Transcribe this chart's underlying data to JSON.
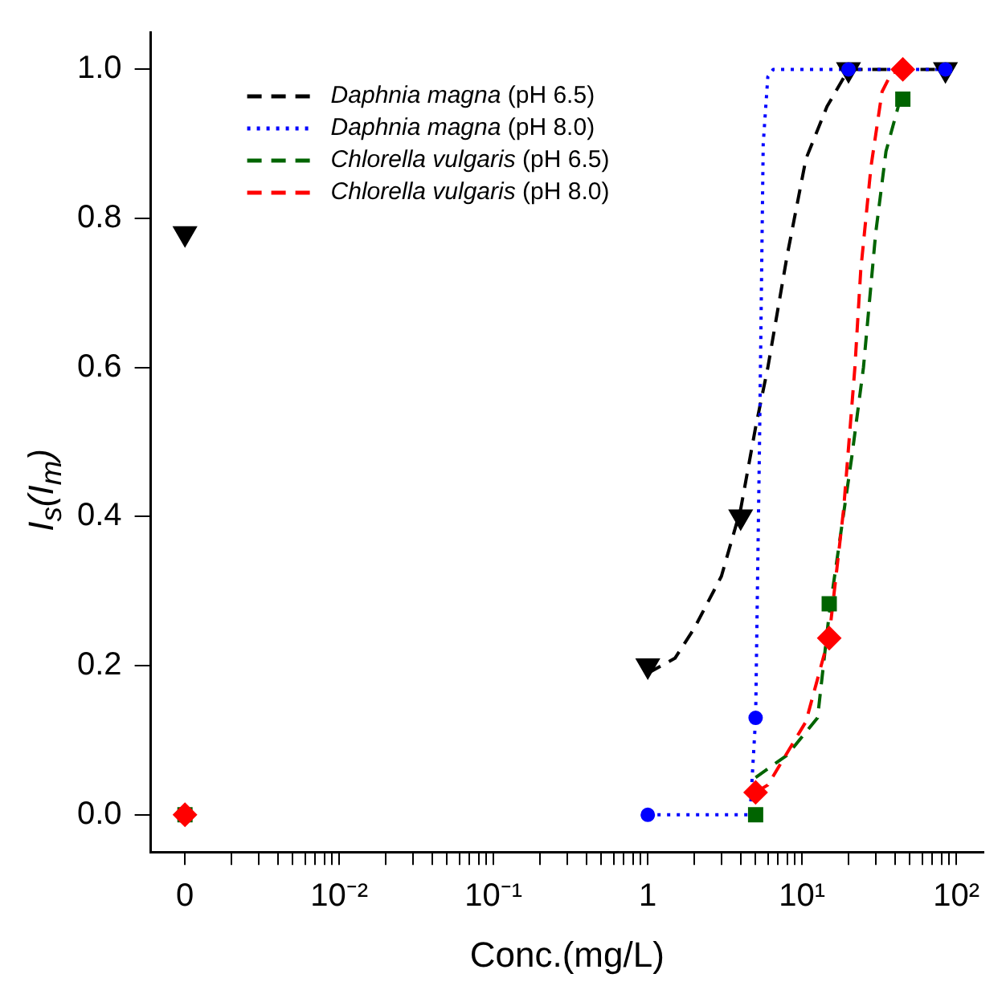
{
  "chart_data": {
    "type": "scatter",
    "xlabel": "Conc.(mg/L)",
    "ylabel": "I$_{s}$(I$_{m}$)",
    "log": "x",
    "legend": "top left",
    "xlim": [
      0.0006,
      150
    ],
    "ylim": [
      -0.05,
      1.05
    ],
    "xticks": [
      {
        "value": 0.001,
        "label": "0"
      },
      {
        "value": 0.002,
        "label": null
      },
      {
        "value": 0.003,
        "label": null
      },
      {
        "value": 0.004,
        "label": null
      },
      {
        "value": 0.005,
        "label": null
      },
      {
        "value": 0.006,
        "label": null
      },
      {
        "value": 0.007,
        "label": null
      },
      {
        "value": 0.008,
        "label": null
      },
      {
        "value": 0.009,
        "label": null
      },
      {
        "value": 0.01,
        "label": "10⁻²"
      },
      {
        "value": 0.02,
        "label": null
      },
      {
        "value": 0.03,
        "label": null
      },
      {
        "value": 0.04,
        "label": null
      },
      {
        "value": 0.05,
        "label": null
      },
      {
        "value": 0.06,
        "label": null
      },
      {
        "value": 0.07,
        "label": null
      },
      {
        "value": 0.08,
        "label": null
      },
      {
        "value": 0.09,
        "label": null
      },
      {
        "value": 0.1,
        "label": "10⁻¹"
      },
      {
        "value": 0.2,
        "label": null
      },
      {
        "value": 0.3,
        "label": null
      },
      {
        "value": 0.4,
        "label": null
      },
      {
        "value": 0.5,
        "label": null
      },
      {
        "value": 0.6,
        "label": null
      },
      {
        "value": 0.7,
        "label": null
      },
      {
        "value": 0.8,
        "label": null
      },
      {
        "value": 0.9,
        "label": null
      },
      1,
      {
        "value": 2,
        "label": null
      },
      {
        "value": 3,
        "label": null
      },
      {
        "value": 4,
        "label": null
      },
      {
        "value": 5,
        "label": null
      },
      {
        "value": 6,
        "label": null
      },
      {
        "value": 7,
        "label": null
      },
      {
        "value": 8,
        "label": null
      },
      {
        "value": 9,
        "label": null
      },
      {
        "value": 10,
        "label": "10¹"
      },
      {
        "value": 20,
        "label": null
      },
      {
        "value": 30,
        "label": null
      },
      {
        "value": 40,
        "label": null
      },
      {
        "value": 50,
        "label": null
      },
      {
        "value": 60,
        "label": null
      },
      {
        "value": 70,
        "label": null
      },
      {
        "value": 80,
        "label": null
      },
      {
        "value": 90,
        "label": null
      },
      {
        "value": 100,
        "label": "10²"
      }
    ],
    "yticks": [
      {
        "value": 0,
        "label": "0.0"
      },
      0.2,
      0.4,
      0.6,
      0.8,
      {
        "value": 1,
        "label": "1.0"
      }
    ],
    "series": [
      {
        "name": "Daphnia magna (pH 6.5)",
        "type": "line",
        "color": "#000000",
        "line_style": "dashed",
        "marker": "none",
        "x": [
          1,
          1.5,
          2,
          3,
          4,
          5,
          6,
          8,
          10.6,
          14.5,
          20,
          85
        ],
        "values": [
          0.19,
          0.21,
          0.25,
          0.32,
          0.41,
          0.52,
          0.6,
          0.75,
          0.88,
          0.95,
          1.0,
          1.0
        ]
      },
      {
        "name": "Daphnia magna (pH 8.0)",
        "type": "line",
        "color": "#0000ff",
        "line_style": "dotted",
        "marker": "none",
        "x": [
          1,
          4.6,
          5,
          5.3,
          5.6,
          6,
          6.5,
          85
        ],
        "values": [
          0,
          0,
          0.13,
          0.5,
          0.9,
          0.99,
          1.0,
          1.0
        ]
      },
      {
        "name": "Chlorella vulgaris (pH 6.5)",
        "type": "line",
        "color": "#006400",
        "line_style": "dashed",
        "marker": "none",
        "x": [
          5,
          8,
          12.6,
          15,
          21,
          25,
          30,
          35,
          42,
          46
        ],
        "values": [
          0.05,
          0.08,
          0.13,
          0.27,
          0.48,
          0.6,
          0.78,
          0.89,
          0.95,
          0.97
        ]
      },
      {
        "name": "Chlorella vulgaris (pH 8.0)",
        "type": "line",
        "color": "#ff0000",
        "line_style": "dashed",
        "marker": "none",
        "x": [
          5,
          6,
          10.6,
          15,
          18.6,
          22,
          24,
          28,
          33,
          38,
          46
        ],
        "values": [
          0.03,
          0.04,
          0.125,
          0.24,
          0.41,
          0.6,
          0.73,
          0.87,
          0.97,
          0.995,
          1.0
        ]
      },
      {
        "type": "scatter",
        "color": "#000000",
        "marker": "triangle",
        "x": [
          0.001,
          1,
          4,
          20,
          85
        ],
        "values": [
          0.78,
          0.2,
          0.4,
          1.0,
          1.0
        ]
      },
      {
        "type": "scatter",
        "color": "#0000ff",
        "marker": "circle",
        "x": [
          1,
          5,
          20,
          85
        ],
        "values": [
          0,
          0.13,
          1.0,
          1.0
        ]
      },
      {
        "type": "scatter",
        "color": "#006400",
        "marker": "square",
        "x": [
          0.001,
          5,
          15,
          45
        ],
        "values": [
          0,
          0,
          0.283,
          0.96
        ]
      },
      {
        "type": "scatter",
        "color": "#ff0000",
        "marker": "diamond",
        "x": [
          0.001,
          5,
          15,
          45
        ],
        "values": [
          0,
          0.03,
          0.237,
          1.0
        ]
      }
    ]
  }
}
